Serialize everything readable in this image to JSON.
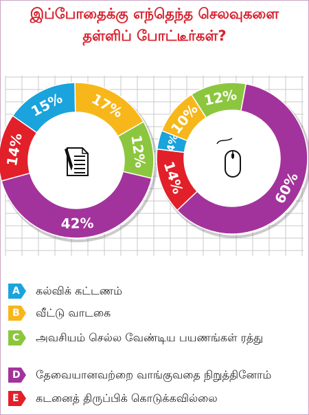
{
  "title": {
    "line1": "இப்போதைக்கு எந்தெந்த செலவுகளை",
    "line2": "தள்ளிப் போட்டீர்கள்?"
  },
  "colors": {
    "A": "#1aa3dc",
    "B": "#f7b71a",
    "C": "#8cc63e",
    "D": "#a3339c",
    "E": "#e2202a",
    "title": "#d6202c"
  },
  "legend": [
    {
      "letter": "A",
      "label": "கல்விக் கட்டணம்"
    },
    {
      "letter": "B",
      "label": "வீட்டு வாடகை"
    },
    {
      "letter": "C",
      "label": "அவசியம் செல்ல வேண்டிய பயணங்கள் ரத்து"
    },
    {
      "letter": "D",
      "label": "தேவையானவற்றை வாங்குவதை நிறுத்தினோம்"
    },
    {
      "letter": "E",
      "label": "கடனைத் திருப்பிக் கொடுக்கவில்லை"
    }
  ],
  "chart_data": [
    {
      "type": "pie",
      "icon": "document-pen-icon",
      "slices": [
        {
          "category": "A",
          "value": 15,
          "label": "15%"
        },
        {
          "category": "B",
          "value": 17,
          "label": "17%"
        },
        {
          "category": "C",
          "value": 12,
          "label": "12%"
        },
        {
          "category": "D",
          "value": 42,
          "label": "42%"
        },
        {
          "category": "E",
          "value": 14,
          "label": "14%"
        }
      ]
    },
    {
      "type": "pie",
      "icon": "computer-mouse-icon",
      "slices": [
        {
          "category": "A",
          "value": 4,
          "label": "4%"
        },
        {
          "category": "B",
          "value": 10,
          "label": "10%"
        },
        {
          "category": "C",
          "value": 12,
          "label": "12%"
        },
        {
          "category": "D",
          "value": 60,
          "label": "60%"
        },
        {
          "category": "E",
          "value": 14,
          "label": "14%"
        }
      ]
    }
  ]
}
